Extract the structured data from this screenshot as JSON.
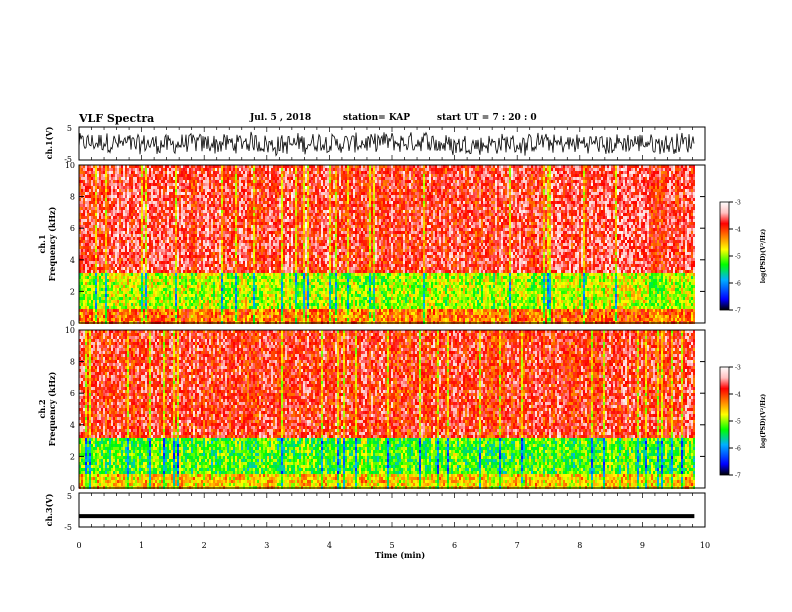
{
  "header": {
    "title": "VLF Spectra",
    "date": "Jul. 5 , 2018",
    "station": "station= KAP",
    "start": "start UT = 7 : 20 : 0"
  },
  "chart_data": [
    {
      "type": "line",
      "panel": "ch1-waveform",
      "ylabel": "ch.1(V)",
      "ylim": [
        -5,
        5
      ],
      "y_ticks": [
        "5",
        "-5"
      ],
      "xlim": [
        0,
        10
      ],
      "trace_xmax": 9.83,
      "trace_color": "#000000"
    },
    {
      "type": "heatmap",
      "panel": "ch1-spectrogram",
      "ylabel": [
        "ch.1",
        "Frequency (kHz)"
      ],
      "ylim": [
        0,
        10
      ],
      "y_ticks": [
        "0",
        "2",
        "4",
        "6",
        "8",
        "10"
      ],
      "xlim": [
        0,
        10
      ],
      "data_xmax": 9.83,
      "colorbar": {
        "label": "log(PSD)(V²/Hz)",
        "range": [
          -7,
          -3
        ],
        "ticks": [
          "-3",
          "-4",
          "-5",
          "-6",
          "-7"
        ]
      },
      "dominant_level_above_3khz": -3.7,
      "band_level_1_to_3khz": -4.9,
      "band_level_below_1khz": -4.2
    },
    {
      "type": "heatmap",
      "panel": "ch2-spectrogram",
      "ylabel": [
        "ch.2",
        "Frequency (kHz)"
      ],
      "ylim": [
        0,
        10
      ],
      "y_ticks": [
        "0",
        "2",
        "4",
        "6",
        "8",
        "10"
      ],
      "xlim": [
        0,
        10
      ],
      "data_xmax": 9.83,
      "colorbar": {
        "label": "log(PSD)(V²/Hz)",
        "range": [
          -7,
          -3
        ],
        "ticks": [
          "-3",
          "-4",
          "-5",
          "-6",
          "-7"
        ]
      },
      "dominant_level_above_3khz": -3.8,
      "band_level_1_to_3khz": -5.2,
      "band_level_below_1khz": -4.6
    },
    {
      "type": "line",
      "panel": "ch3-waveform",
      "ylabel": "ch.3(V)",
      "ylim": [
        -5,
        5
      ],
      "y_ticks": [
        "5",
        "-5"
      ],
      "xlim": [
        0,
        10
      ],
      "trace_value": -1.8,
      "trace_xmax": 9.83
    }
  ],
  "x_axis": {
    "label": "Time (min)",
    "ticks": [
      "0",
      "1",
      "2",
      "3",
      "4",
      "5",
      "6",
      "7",
      "8",
      "9",
      "10"
    ]
  },
  "colors": {
    "colormap": [
      "#000000",
      "#0000ff",
      "#00b0ff",
      "#00ff00",
      "#ffff00",
      "#ff8000",
      "#ff0000",
      "#ffc0c0",
      "#ffffff"
    ]
  }
}
